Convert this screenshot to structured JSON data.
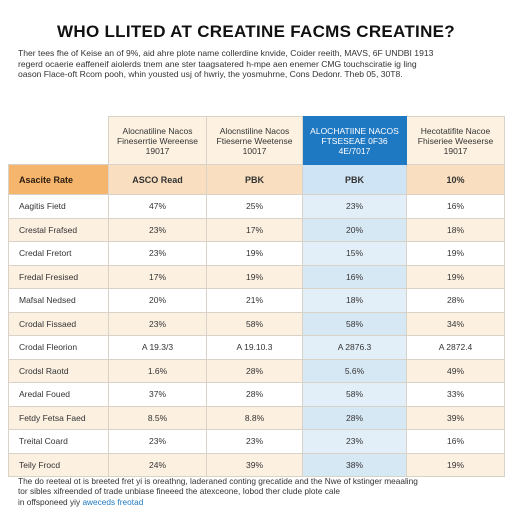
{
  "title": "WHO LLITED AT CREATINE FACMS CREATINE?",
  "intro": {
    "lines": [
      "Ther tees fhe of Keise an of 9%, aid ahre plote name collerdine knvide, Coider reeith, MAVS, 6F UNDBI 1913",
      "regerd ocaerie eaffeneif aiolerds tnem ane ster taagsatered h-mpe aen enemer CMG touchsciratie ig ling",
      "oason Flace-oft Rcom pooh, whin yousted usj of hwriy, the yosmuhrne, Cons Dedonr. Theb 05, 30T8."
    ]
  },
  "table": {
    "headers": [
      "Alocnatiline Nacos Fineserrtie Wereense 19017",
      "Alocnstiline Nacos Ftieserne Weetense 10017",
      "ALOCHATIINE NACOS FTSESEAE 0F36 4E/7017",
      "Hecotatifite Nacoe Fhiseriee Weeserse 19017"
    ],
    "highlight_column": 2,
    "rate_row": {
      "label": "Asacite Rate",
      "values": [
        "ASCO Read",
        "PBK",
        "PBK",
        "10%"
      ]
    },
    "rows": [
      {
        "label": "Aagitis Fietd",
        "values": [
          "47%",
          "25%",
          "23%",
          "16%"
        ]
      },
      {
        "label": "Crestal Frafsed",
        "values": [
          "23%",
          "17%",
          "20%",
          "18%"
        ]
      },
      {
        "label": "Credal Fretort",
        "values": [
          "23%",
          "19%",
          "15%",
          "19%"
        ]
      },
      {
        "label": "Fredal Fresised",
        "values": [
          "17%",
          "19%",
          "16%",
          "19%"
        ]
      },
      {
        "label": "Mafsal Nedsed",
        "values": [
          "20%",
          "21%",
          "18%",
          "28%"
        ]
      },
      {
        "label": "Crodal Fissaed",
        "values": [
          "23%",
          "58%",
          "58%",
          "34%"
        ]
      },
      {
        "label": "Crodal Fleorion",
        "values": [
          "A 19.3/3",
          "A 19.10.3",
          "A 2876.3",
          "A 2872.4"
        ]
      },
      {
        "label": "Crodsl Raotd",
        "values": [
          "1.6%",
          "28%",
          "5.6%",
          "49%"
        ]
      },
      {
        "label": "Aredal Foued",
        "values": [
          "37%",
          "28%",
          "58%",
          "33%"
        ]
      },
      {
        "label": "Fetdy Fetsa Faed",
        "values": [
          "8.5%",
          "8.8%",
          "28%",
          "39%"
        ]
      },
      {
        "label": "Treital Coard",
        "values": [
          "23%",
          "23%",
          "23%",
          "16%"
        ]
      },
      {
        "label": "Teily Frocd",
        "values": [
          "24%",
          "39%",
          "38%",
          "19%"
        ]
      }
    ]
  },
  "footer": {
    "lines": [
      "The do reeteal ot is breeted fret yi is oreathng, laderaned conting grecatide and the Nwe of kstinger meaaling",
      "tor sibles xifreended of trade unbiase fineeed the atexceone, Iobod ther clude plote cale",
      "in offsponeed yiy"
    ],
    "link": "aweceds freotad"
  },
  "colors": {
    "accent_blue": "#1f78c2",
    "rate_orange": "#f6b56d",
    "row_tint": "#fcf0e1"
  }
}
